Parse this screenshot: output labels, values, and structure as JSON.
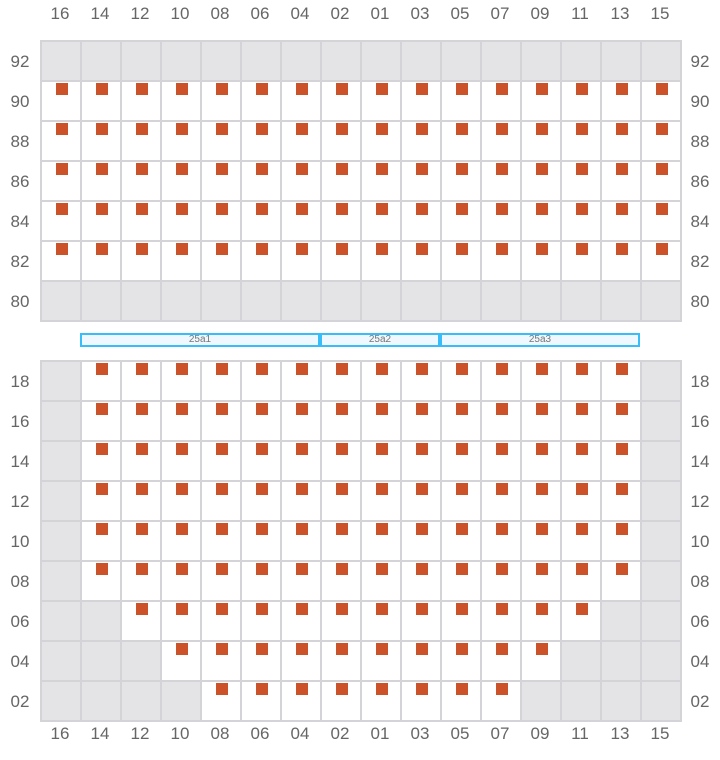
{
  "columns": [
    "16",
    "14",
    "12",
    "10",
    "08",
    "06",
    "04",
    "02",
    "01",
    "03",
    "05",
    "07",
    "09",
    "11",
    "13",
    "15"
  ],
  "colors": {
    "seat": "#cc5229",
    "blocked": "#e4e4e7",
    "grid": "#d4d4d8",
    "section_border": "#38bdf8"
  },
  "upper_block": {
    "rows": [
      {
        "label": "92",
        "seats": []
      },
      {
        "label": "90",
        "seats": [
          "16",
          "14",
          "12",
          "10",
          "08",
          "06",
          "04",
          "02",
          "01",
          "03",
          "05",
          "07",
          "09",
          "11",
          "13",
          "15"
        ]
      },
      {
        "label": "88",
        "seats": [
          "16",
          "14",
          "12",
          "10",
          "08",
          "06",
          "04",
          "02",
          "01",
          "03",
          "05",
          "07",
          "09",
          "11",
          "13",
          "15"
        ]
      },
      {
        "label": "86",
        "seats": [
          "16",
          "14",
          "12",
          "10",
          "08",
          "06",
          "04",
          "02",
          "01",
          "03",
          "05",
          "07",
          "09",
          "11",
          "13",
          "15"
        ]
      },
      {
        "label": "84",
        "seats": [
          "16",
          "14",
          "12",
          "10",
          "08",
          "06",
          "04",
          "02",
          "01",
          "03",
          "05",
          "07",
          "09",
          "11",
          "13",
          "15"
        ]
      },
      {
        "label": "82",
        "seats": [
          "16",
          "14",
          "12",
          "10",
          "08",
          "06",
          "04",
          "02",
          "01",
          "03",
          "05",
          "07",
          "09",
          "11",
          "13",
          "15"
        ]
      },
      {
        "label": "80",
        "seats": []
      }
    ]
  },
  "sections": [
    {
      "label": "25a1",
      "from": "14",
      "to": "04"
    },
    {
      "label": "25a2",
      "from": "02",
      "to": "03"
    },
    {
      "label": "25a3",
      "from": "05",
      "to": "13"
    }
  ],
  "lower_block": {
    "rows": [
      {
        "label": "18",
        "seats": [
          "14",
          "12",
          "10",
          "08",
          "06",
          "04",
          "02",
          "01",
          "03",
          "05",
          "07",
          "09",
          "11",
          "13"
        ]
      },
      {
        "label": "16",
        "seats": [
          "14",
          "12",
          "10",
          "08",
          "06",
          "04",
          "02",
          "01",
          "03",
          "05",
          "07",
          "09",
          "11",
          "13"
        ]
      },
      {
        "label": "14",
        "seats": [
          "14",
          "12",
          "10",
          "08",
          "06",
          "04",
          "02",
          "01",
          "03",
          "05",
          "07",
          "09",
          "11",
          "13"
        ]
      },
      {
        "label": "12",
        "seats": [
          "14",
          "12",
          "10",
          "08",
          "06",
          "04",
          "02",
          "01",
          "03",
          "05",
          "07",
          "09",
          "11",
          "13"
        ]
      },
      {
        "label": "10",
        "seats": [
          "14",
          "12",
          "10",
          "08",
          "06",
          "04",
          "02",
          "01",
          "03",
          "05",
          "07",
          "09",
          "11",
          "13"
        ]
      },
      {
        "label": "08",
        "seats": [
          "14",
          "12",
          "10",
          "08",
          "06",
          "04",
          "02",
          "01",
          "03",
          "05",
          "07",
          "09",
          "11",
          "13"
        ]
      },
      {
        "label": "06",
        "seats": [
          "12",
          "10",
          "08",
          "06",
          "04",
          "02",
          "01",
          "03",
          "05",
          "07",
          "09",
          "11"
        ]
      },
      {
        "label": "04",
        "seats": [
          "10",
          "08",
          "06",
          "04",
          "02",
          "01",
          "03",
          "05",
          "07",
          "09"
        ]
      },
      {
        "label": "02",
        "seats": [
          "08",
          "06",
          "04",
          "02",
          "01",
          "03",
          "05",
          "07"
        ]
      }
    ]
  }
}
